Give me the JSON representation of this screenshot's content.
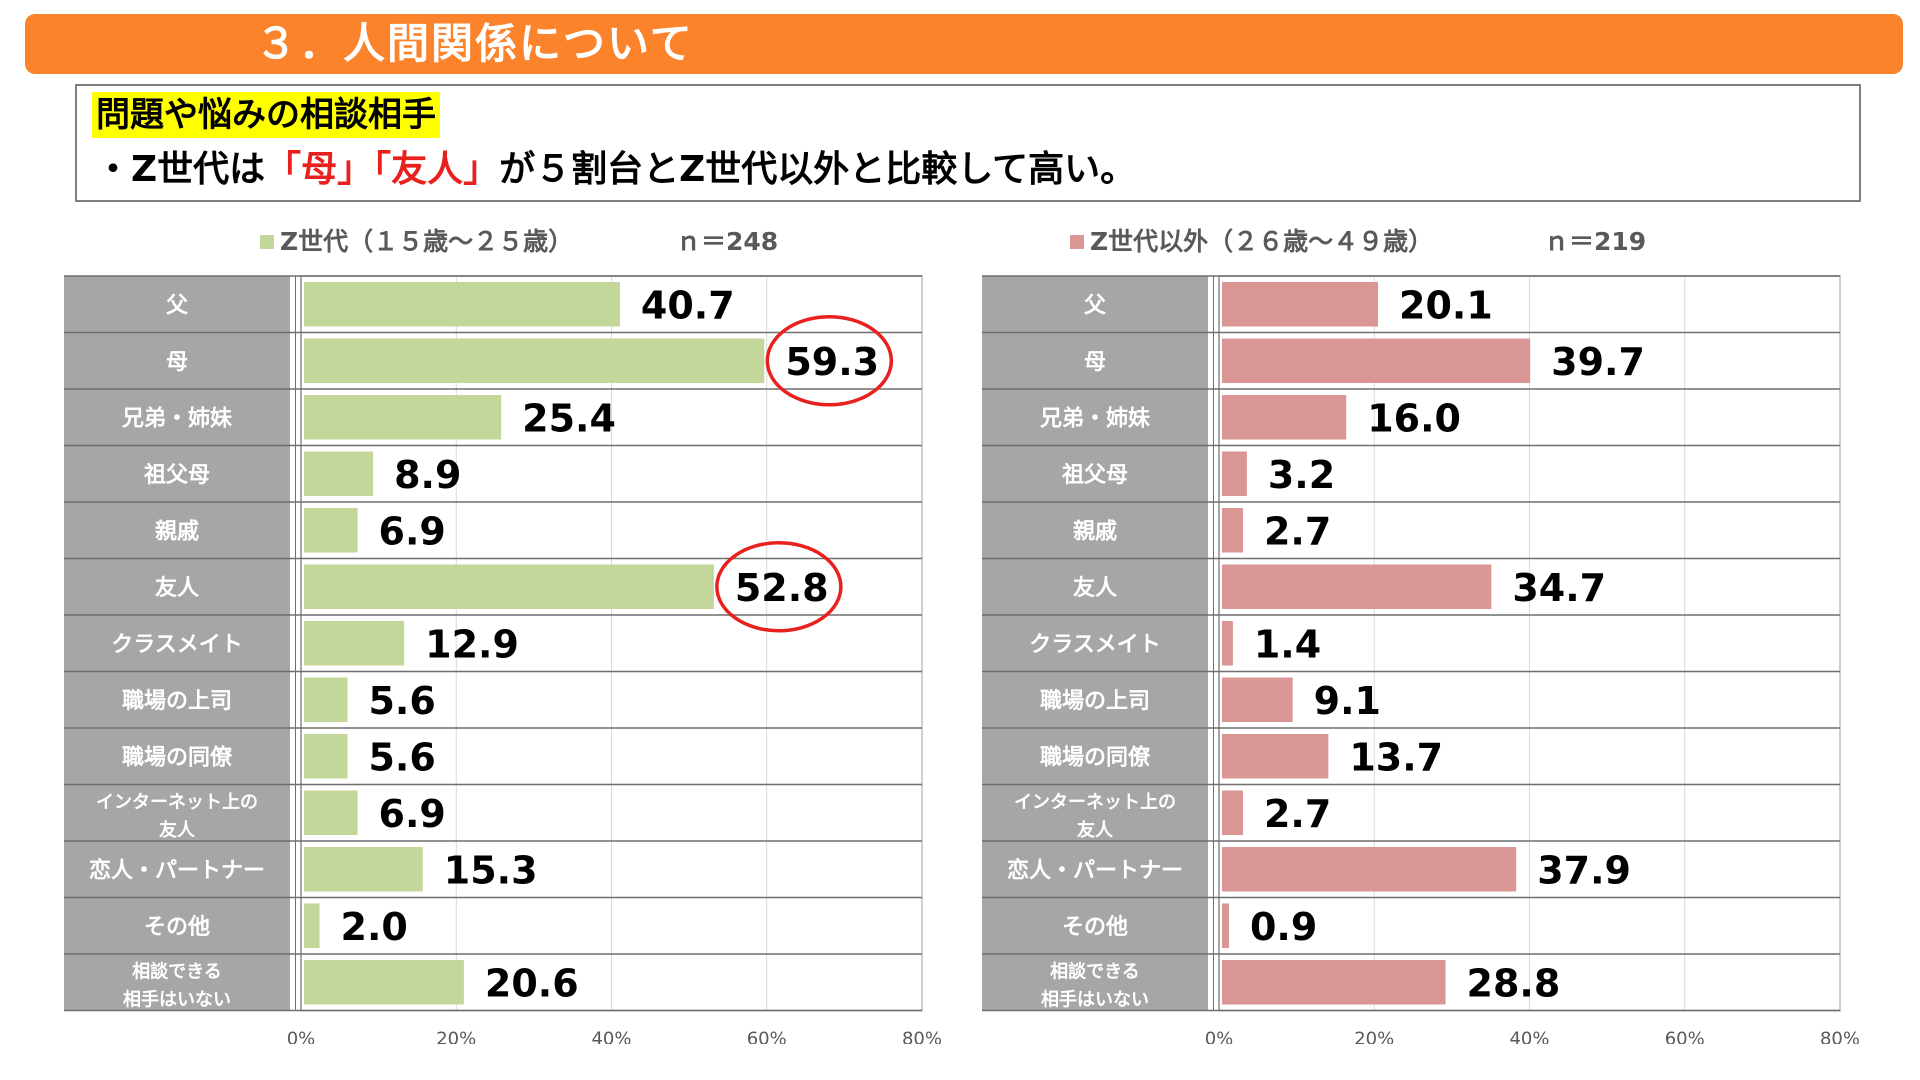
{
  "header": {
    "title": "３．人間関係について"
  },
  "summary": {
    "heading": "問題や悩みの相談相手",
    "line_prefix": "・Z世代は",
    "highlight_1": "「母」",
    "highlight_2": "「友人」",
    "line_suffix": "が５割台とZ世代以外と比較して高い。"
  },
  "categories": [
    "父",
    "母",
    "兄弟・姉妹",
    "祖父母",
    "親戚",
    "友人",
    "クラスメイト",
    "職場の上司",
    "職場の同僚",
    "インターネット上の友人",
    "恋人・パートナー",
    "その他",
    "相談できる相手はいない"
  ],
  "category_label_lines": [
    [
      "父"
    ],
    [
      "母"
    ],
    [
      "兄弟・姉妹"
    ],
    [
      "祖父母"
    ],
    [
      "親戚"
    ],
    [
      "友人"
    ],
    [
      "クラスメイト"
    ],
    [
      "職場の上司"
    ],
    [
      "職場の同僚"
    ],
    [
      "インターネット上の",
      "友人"
    ],
    [
      "恋人・パートナー"
    ],
    [
      "その他"
    ],
    [
      "相談できる",
      "相手はいない"
    ]
  ],
  "chart_data": [
    {
      "type": "bar",
      "orientation": "horizontal",
      "series_name": "Z世代（１５歳〜２５歳）",
      "n_label": "ｎ＝248",
      "color": "#C4D79B",
      "values": [
        40.7,
        59.3,
        25.4,
        8.9,
        6.9,
        52.8,
        12.9,
        5.6,
        5.6,
        6.9,
        15.3,
        2.0,
        20.6
      ],
      "circled_indices": [
        1,
        5
      ],
      "xlim": [
        0,
        80
      ],
      "ticks": [
        0,
        20,
        40,
        60,
        80
      ],
      "tick_labels": [
        "0%",
        "20%",
        "40%",
        "60%",
        "80%"
      ]
    },
    {
      "type": "bar",
      "orientation": "horizontal",
      "series_name": "Z世代以外（２６歳〜４９歳）",
      "n_label": "ｎ＝219",
      "color": "#D99694",
      "values": [
        20.1,
        39.7,
        16.0,
        3.2,
        2.7,
        34.7,
        1.4,
        9.1,
        13.7,
        2.7,
        37.9,
        0.9,
        28.8
      ],
      "circled_indices": [],
      "xlim": [
        0,
        80
      ],
      "ticks": [
        0,
        20,
        40,
        60,
        80
      ],
      "tick_labels": [
        "0%",
        "20%",
        "40%",
        "60%",
        "80%"
      ]
    }
  ],
  "colors": {
    "header": "#FA832C",
    "highlight": "#E8201E",
    "label_bg": "#A6A6A6",
    "circle": "#E8201E"
  }
}
